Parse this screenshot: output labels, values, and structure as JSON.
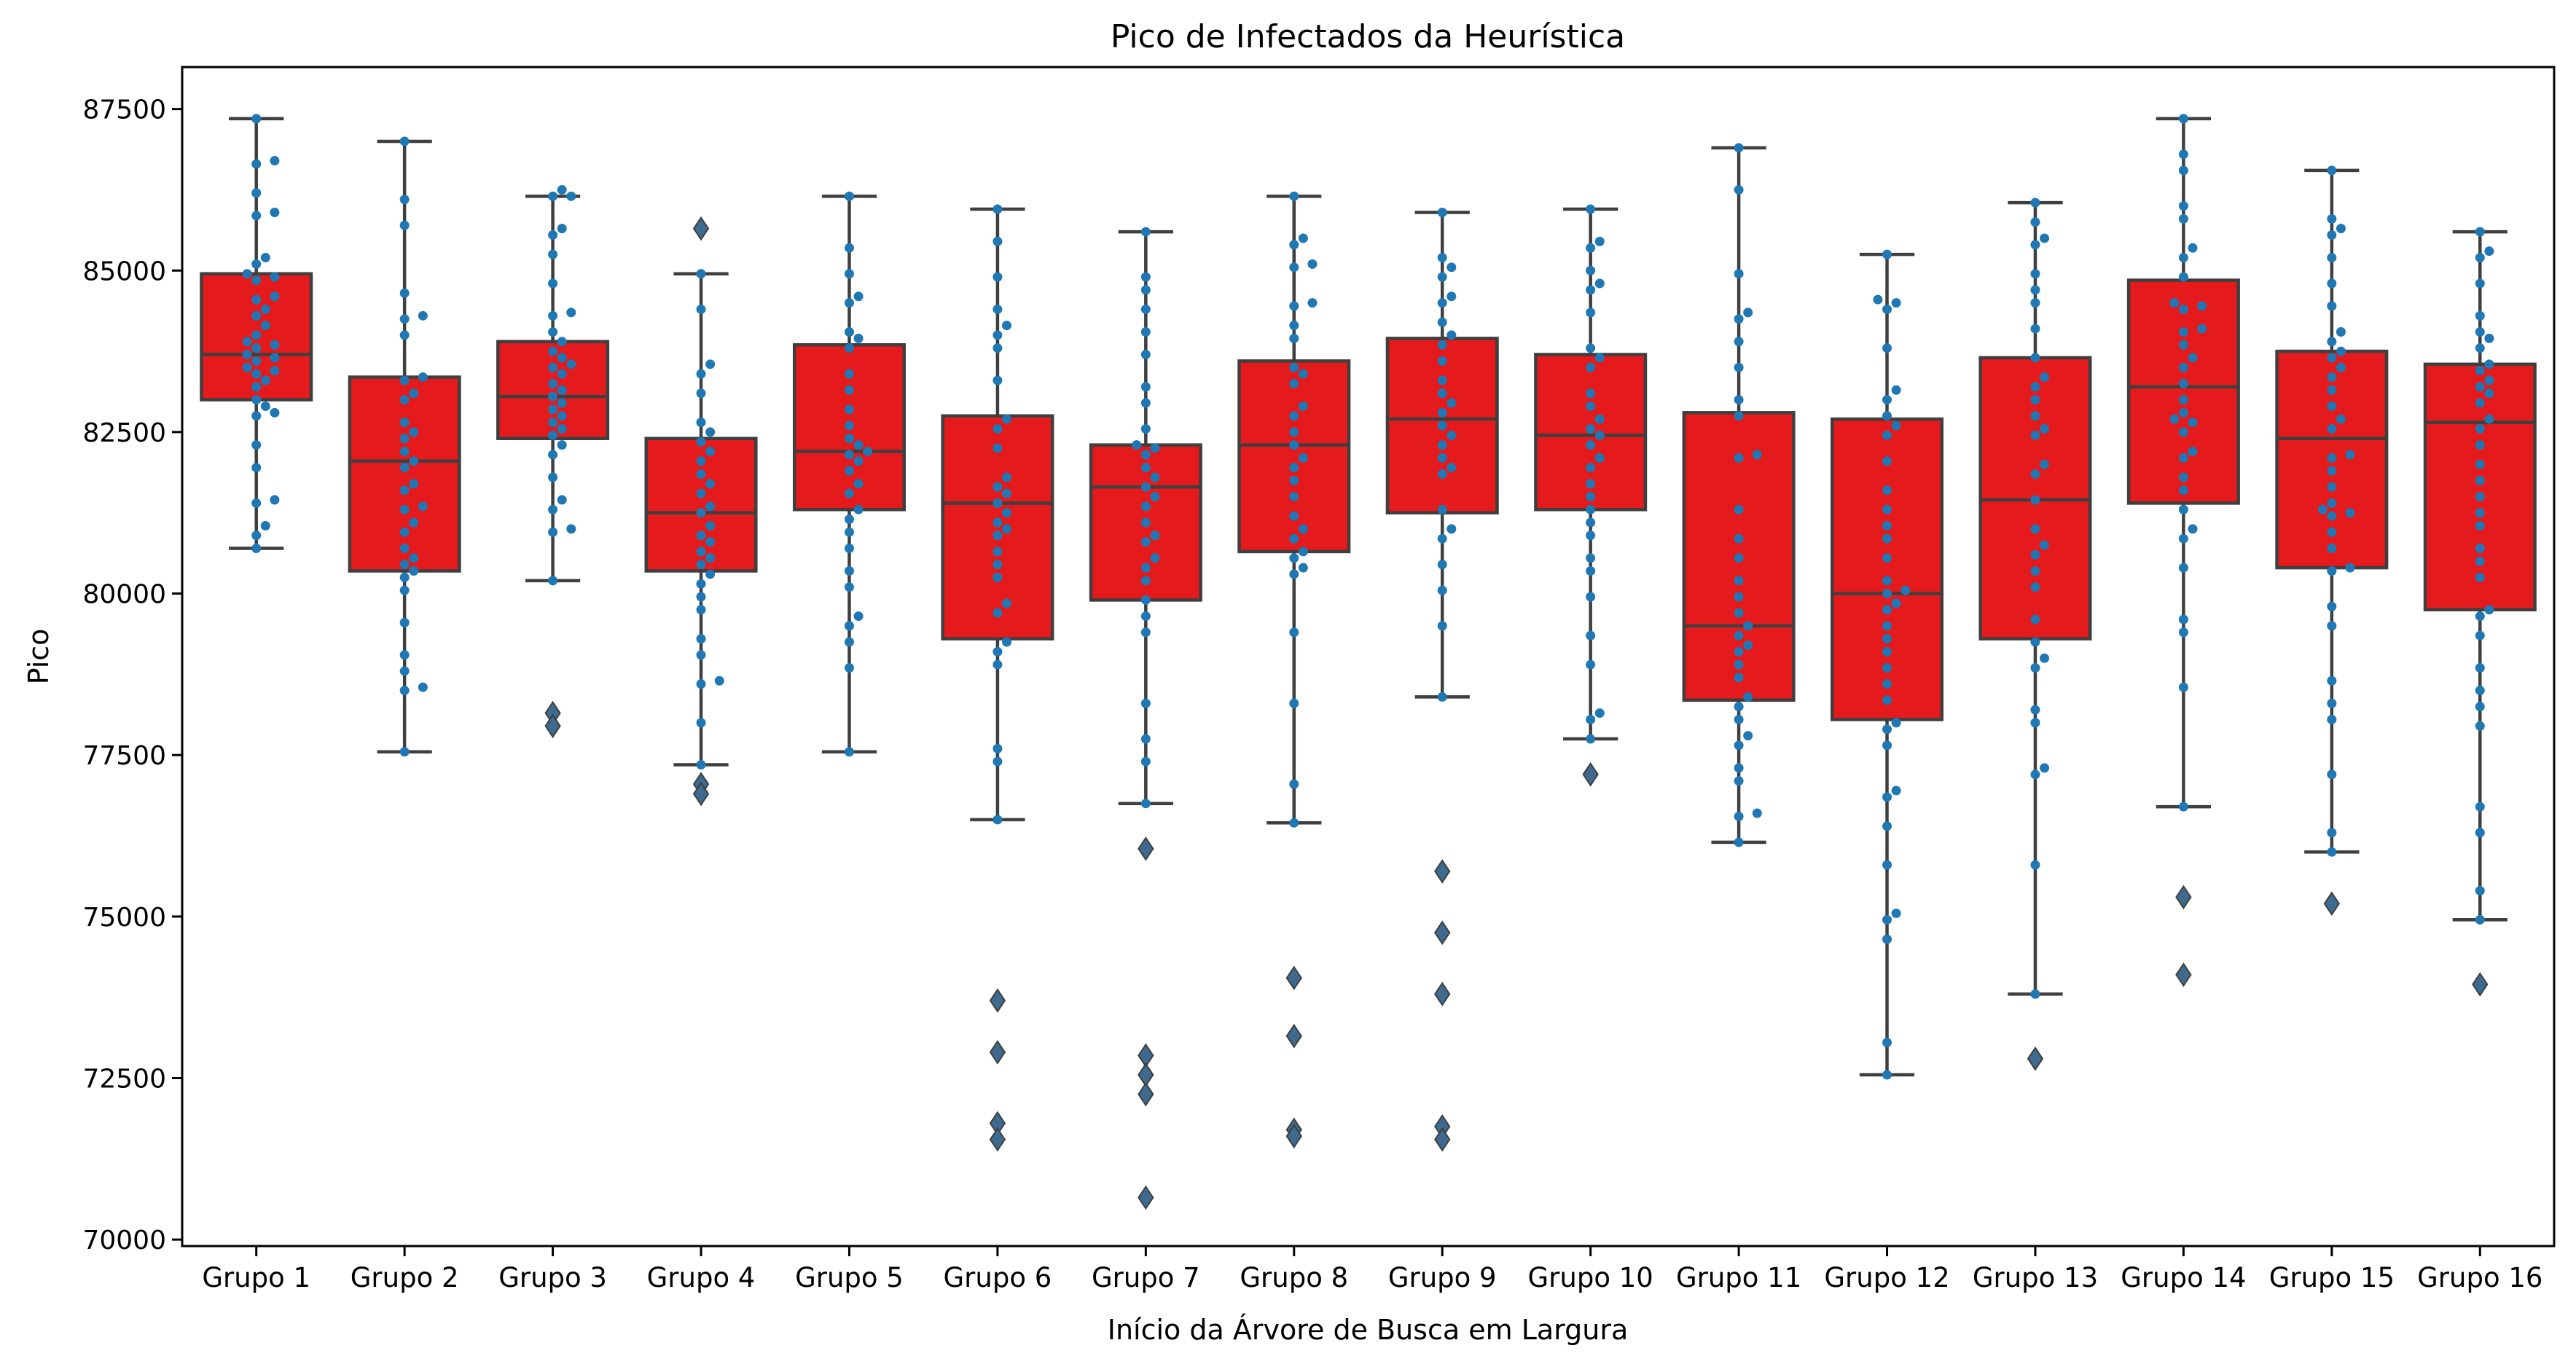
{
  "chart_data": {
    "type": "box",
    "title": "Pico de Infectados da Heurística",
    "xlabel": "Início da Árvore de Busca em Largura",
    "ylabel": "Pico",
    "ylim": [
      69900,
      88150
    ],
    "yticks": [
      70000,
      72500,
      75000,
      77500,
      80000,
      82500,
      85000,
      87500
    ],
    "categories": [
      "Grupo 1",
      "Grupo 2",
      "Grupo 3",
      "Grupo 4",
      "Grupo 5",
      "Grupo 6",
      "Grupo 7",
      "Grupo 8",
      "Grupo 9",
      "Grupo 10",
      "Grupo 11",
      "Grupo 12",
      "Grupo 13",
      "Grupo 14",
      "Grupo 15",
      "Grupo 16"
    ],
    "box_color": "#e41a1c",
    "line_color": "#3f3f3f",
    "point_color": "#1f77b4",
    "grid": false,
    "legend": "none",
    "boxes": [
      {
        "whislo": 80700,
        "q1": 83000,
        "med": 83700,
        "q3": 84950,
        "whishi": 87350,
        "outliers": []
      },
      {
        "whislo": 77550,
        "q1": 80350,
        "med": 82050,
        "q3": 83350,
        "whishi": 87000,
        "outliers": []
      },
      {
        "whislo": 80200,
        "q1": 82400,
        "med": 83050,
        "q3": 83900,
        "whishi": 86150,
        "outliers": [
          78150,
          77950
        ]
      },
      {
        "whislo": 77350,
        "q1": 80350,
        "med": 81250,
        "q3": 82400,
        "whishi": 84950,
        "outliers": [
          85650,
          77050,
          76900
        ]
      },
      {
        "whislo": 77550,
        "q1": 81300,
        "med": 82200,
        "q3": 83850,
        "whishi": 86150,
        "outliers": []
      },
      {
        "whislo": 76500,
        "q1": 79300,
        "med": 81400,
        "q3": 82750,
        "whishi": 85950,
        "outliers": [
          73700,
          72900,
          71800,
          71550
        ]
      },
      {
        "whislo": 76750,
        "q1": 79900,
        "med": 81650,
        "q3": 82300,
        "whishi": 85600,
        "outliers": [
          76050,
          72850,
          72550,
          72250,
          70650
        ]
      },
      {
        "whislo": 76450,
        "q1": 80650,
        "med": 82300,
        "q3": 83600,
        "whishi": 86150,
        "outliers": [
          74050,
          73150,
          71700,
          71600
        ]
      },
      {
        "whislo": 78400,
        "q1": 81250,
        "med": 82700,
        "q3": 83950,
        "whishi": 85900,
        "outliers": [
          75700,
          74750,
          73800,
          71750,
          71550
        ]
      },
      {
        "whislo": 77750,
        "q1": 81300,
        "med": 82450,
        "q3": 83700,
        "whishi": 85950,
        "outliers": [
          77200
        ]
      },
      {
        "whislo": 76150,
        "q1": 78350,
        "med": 79500,
        "q3": 82800,
        "whishi": 86900,
        "outliers": []
      },
      {
        "whislo": 72550,
        "q1": 78050,
        "med": 80000,
        "q3": 82700,
        "whishi": 85250,
        "outliers": []
      },
      {
        "whislo": 73800,
        "q1": 79300,
        "med": 81450,
        "q3": 83650,
        "whishi": 86050,
        "outliers": [
          72800
        ]
      },
      {
        "whislo": 76700,
        "q1": 81400,
        "med": 83200,
        "q3": 84850,
        "whishi": 87350,
        "outliers": [
          75300,
          74100
        ]
      },
      {
        "whislo": 76000,
        "q1": 80400,
        "med": 82400,
        "q3": 83750,
        "whishi": 86550,
        "outliers": [
          75200
        ]
      },
      {
        "whislo": 74950,
        "q1": 79750,
        "med": 82650,
        "q3": 83550,
        "whishi": 85600,
        "outliers": [
          73950
        ]
      }
    ],
    "points": [
      [
        87350,
        86700,
        86650,
        86200,
        85900,
        85850,
        85200,
        85100,
        84950,
        84900,
        84850,
        84600,
        84550,
        84400,
        84300,
        84150,
        84000,
        83900,
        83850,
        83800,
        83700,
        83650,
        83600,
        83500,
        83450,
        83400,
        83300,
        83200,
        83000,
        82900,
        82800,
        82750,
        82300,
        81950,
        81450,
        81400,
        81050,
        80900,
        80700
      ],
      [
        87000,
        86100,
        85700,
        84650,
        84300,
        84250,
        84000,
        83350,
        83300,
        83100,
        83000,
        82650,
        82500,
        82400,
        82200,
        82050,
        81950,
        81700,
        81600,
        81350,
        81300,
        81100,
        80950,
        80700,
        80550,
        80450,
        80350,
        80250,
        80050,
        79550,
        79050,
        78800,
        78550,
        78500,
        77550
      ],
      [
        86250,
        86150,
        86150,
        85650,
        85550,
        85250,
        84800,
        84350,
        84300,
        84050,
        83900,
        83750,
        83650,
        83550,
        83500,
        83400,
        83250,
        83150,
        83050,
        82950,
        82850,
        82750,
        82650,
        82550,
        82450,
        82300,
        82150,
        81800,
        81450,
        81300,
        81000,
        80950,
        80200
      ],
      [
        84950,
        84400,
        83550,
        83400,
        83100,
        82650,
        82500,
        82350,
        82200,
        82050,
        81850,
        81700,
        81550,
        81350,
        81250,
        81050,
        80900,
        80800,
        80650,
        80550,
        80450,
        80300,
        80150,
        79950,
        79750,
        79300,
        79050,
        78650,
        78600,
        78000,
        77350
      ],
      [
        86150,
        85350,
        84950,
        84600,
        84500,
        84050,
        83950,
        83800,
        83400,
        83150,
        82850,
        82600,
        82400,
        82300,
        82200,
        82150,
        82050,
        81900,
        81700,
        81550,
        81300,
        81150,
        80950,
        80700,
        80350,
        80100,
        79650,
        79500,
        79250,
        78850,
        77550
      ],
      [
        85950,
        85450,
        84900,
        84400,
        84150,
        84000,
        83800,
        83300,
        82700,
        82550,
        82250,
        81800,
        81650,
        81550,
        81400,
        81250,
        81100,
        81000,
        80900,
        80650,
        80450,
        80250,
        79850,
        79700,
        79250,
        79100,
        78900,
        77600,
        77400,
        76500
      ],
      [
        85600,
        84900,
        84700,
        84400,
        84050,
        83700,
        83200,
        82950,
        82550,
        82300,
        82250,
        82150,
        81950,
        81800,
        81650,
        81500,
        81350,
        81100,
        80900,
        80800,
        80550,
        80400,
        80200,
        79900,
        79650,
        79400,
        78300,
        77750,
        77400,
        76750
      ],
      [
        86150,
        85500,
        85400,
        85100,
        85050,
        84500,
        84450,
        84150,
        83950,
        83500,
        83400,
        83250,
        82900,
        82750,
        82500,
        82300,
        82100,
        81950,
        81750,
        81500,
        81200,
        81000,
        80850,
        80650,
        80550,
        80400,
        80300,
        79400,
        78300,
        77050,
        76450
      ],
      [
        85900,
        85200,
        85050,
        84900,
        84600,
        84500,
        84200,
        84000,
        83850,
        83600,
        83300,
        83100,
        82950,
        82800,
        82600,
        82450,
        82300,
        82100,
        81950,
        81850,
        81300,
        81000,
        80850,
        80450,
        80050,
        79500,
        78400
      ],
      [
        85950,
        85450,
        85350,
        85000,
        84800,
        84700,
        84350,
        83800,
        83650,
        83500,
        83100,
        82900,
        82700,
        82550,
        82450,
        82300,
        82100,
        81950,
        81700,
        81500,
        81300,
        81100,
        80900,
        80550,
        80350,
        79950,
        79350,
        78900,
        78150,
        78050,
        77750
      ],
      [
        86900,
        86250,
        84950,
        84350,
        84250,
        83900,
        83500,
        83000,
        82750,
        82150,
        82100,
        81300,
        80850,
        80550,
        80200,
        79950,
        79700,
        79500,
        79350,
        79200,
        79100,
        78900,
        78700,
        78400,
        78250,
        78050,
        77800,
        77650,
        77300,
        77100,
        76600,
        76550,
        76150
      ],
      [
        85250,
        84550,
        84500,
        84400,
        83800,
        83150,
        83000,
        82750,
        82600,
        82450,
        82050,
        81600,
        81300,
        81050,
        80850,
        80550,
        80200,
        80050,
        80000,
        79850,
        79750,
        79500,
        79300,
        79100,
        78850,
        78600,
        78350,
        78000,
        77900,
        77650,
        76950,
        76850,
        76400,
        75800,
        75050,
        74950,
        74650,
        73050,
        72550
      ],
      [
        86050,
        85750,
        85500,
        85400,
        84950,
        84700,
        84500,
        84100,
        83650,
        83350,
        83200,
        83000,
        82750,
        82550,
        82450,
        82000,
        81850,
        81450,
        81000,
        80750,
        80600,
        80350,
        80100,
        79600,
        79250,
        79000,
        78850,
        78200,
        78000,
        77300,
        77200,
        75800,
        73800
      ],
      [
        87350,
        86800,
        86550,
        86000,
        85800,
        85350,
        85200,
        84900,
        84500,
        84450,
        84400,
        84100,
        84050,
        83850,
        83650,
        83500,
        83250,
        83000,
        82800,
        82700,
        82650,
        82500,
        82200,
        82100,
        81800,
        81600,
        81300,
        81000,
        80850,
        80400,
        79600,
        79400,
        78550,
        76700
      ],
      [
        86550,
        85800,
        85650,
        85550,
        85200,
        84800,
        84450,
        84050,
        83900,
        83750,
        83650,
        83500,
        83350,
        83150,
        82900,
        82700,
        82550,
        82150,
        82100,
        81900,
        81650,
        81400,
        81300,
        81250,
        81200,
        80950,
        80700,
        80400,
        80350,
        79800,
        79500,
        78650,
        78300,
        78050,
        77200,
        76300,
        76000
      ],
      [
        85600,
        85300,
        85200,
        84800,
        84300,
        84050,
        83950,
        83800,
        83550,
        83450,
        83300,
        83200,
        83100,
        82950,
        82700,
        82550,
        82300,
        82000,
        81750,
        81500,
        81250,
        81050,
        80700,
        80500,
        80250,
        79750,
        79650,
        79350,
        78850,
        78500,
        78250,
        77950,
        76700,
        76300,
        75400,
        74950
      ]
    ]
  }
}
